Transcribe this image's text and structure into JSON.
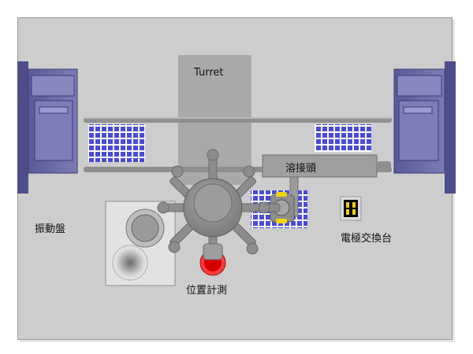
{
  "labels": {
    "turret": "Turret",
    "welding_head": "溶接頭",
    "vibrating_bowl": "振動盤",
    "electrode_exchanger": "電極交換台",
    "position_measurement": "位置計測"
  },
  "colors": {
    "background_panel": "#cdcdcd",
    "feeder_blue": "#6a6aa6",
    "grid_blue": "#4a4adc",
    "turret_gray": "#a9a9a9",
    "gear_gray": "#8d8d8d",
    "sensor_red": "#cc0000",
    "electrode_yellow": "#f0d400"
  },
  "icons": {
    "grid_tray": "grid-tray-icon",
    "electrode": "electrode-holder-icon",
    "sensor": "position-sensor-icon"
  }
}
